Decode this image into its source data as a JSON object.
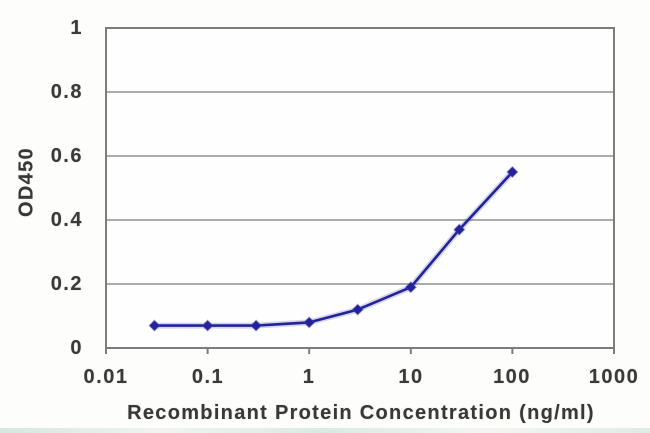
{
  "chart_data": {
    "type": "line",
    "title": "",
    "xlabel": "Recombinant Protein Concentration (ng/ml)",
    "ylabel": "OD450",
    "x_scale": "log",
    "xlim": [
      0.01,
      1000
    ],
    "ylim": [
      0,
      1
    ],
    "x_tick_values": [
      0.01,
      0.1,
      1,
      10,
      100,
      1000
    ],
    "x_tick_labels": [
      "0.01",
      "0.1",
      "1",
      "10",
      "100",
      "1000"
    ],
    "y_tick_values": [
      0,
      0.2,
      0.4,
      0.6,
      0.8,
      1
    ],
    "y_tick_labels": [
      "0",
      "0.2",
      "0.4",
      "0.6",
      "0.8",
      "1"
    ],
    "grid": "horizontal-only",
    "legend": "none",
    "series": [
      {
        "name": "OD450 signal",
        "marker": "diamond",
        "color": "#22229c",
        "x": [
          0.03,
          0.1,
          0.3,
          1,
          3,
          10,
          30,
          100
        ],
        "y": [
          0.07,
          0.07,
          0.07,
          0.08,
          0.12,
          0.19,
          0.37,
          0.55
        ]
      }
    ],
    "colors": {
      "series": "#22229c",
      "series_halo": "rgba(70,70,180,0.22)",
      "grid": "#8f8f8f",
      "axis": "#7d7d7d",
      "text": "#3a3a3a",
      "plot_background": "#fefefe"
    }
  }
}
